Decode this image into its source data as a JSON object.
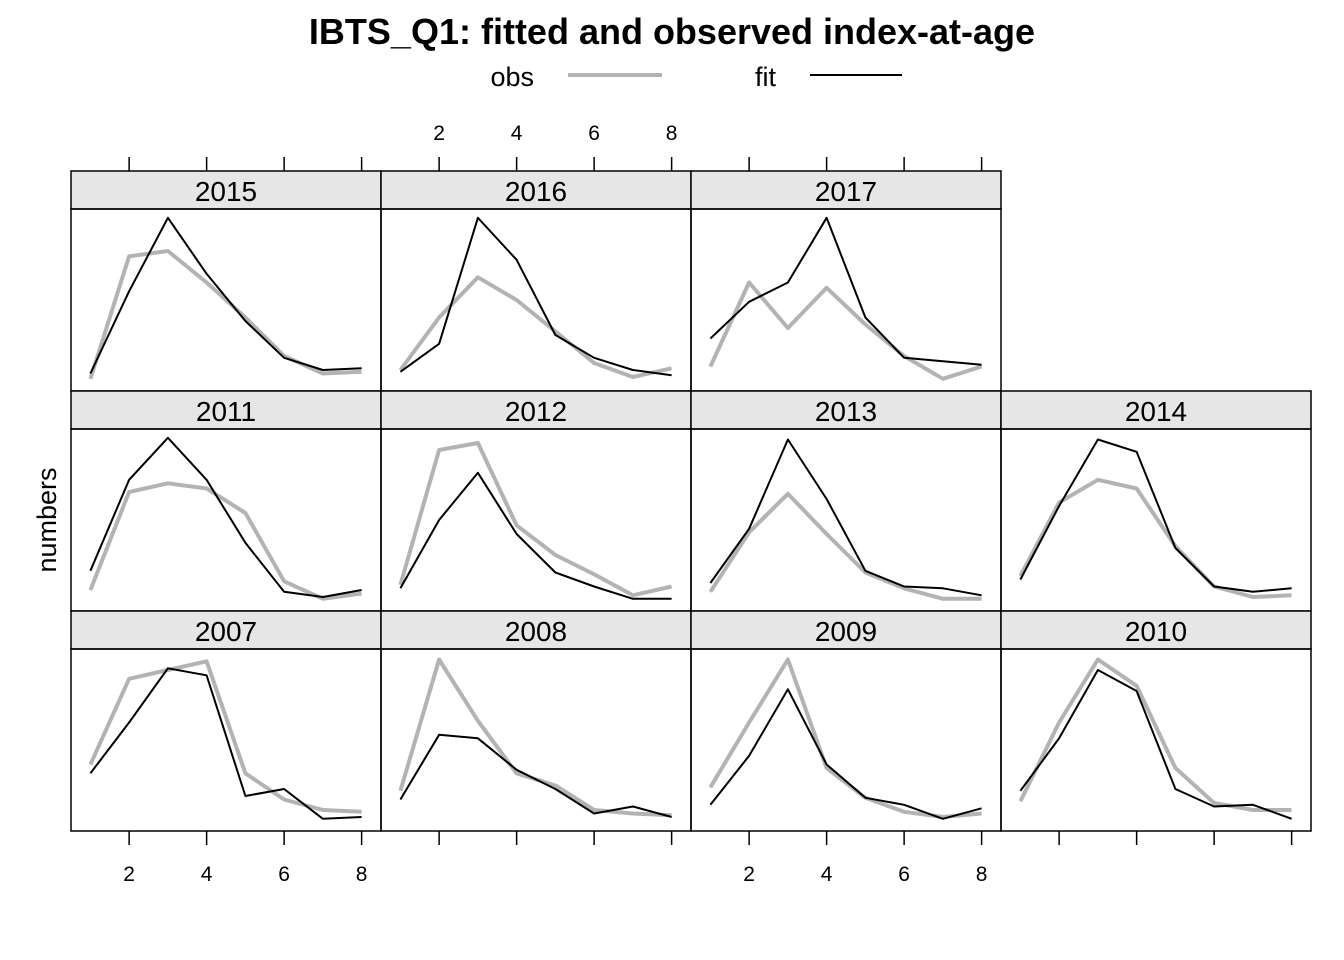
{
  "chart_data": {
    "type": "line",
    "title": "IBTS_Q1: fitted and observed index-at-age",
    "ylabel": "numbers",
    "xlabel": "",
    "xlim": [
      0.5,
      8.5
    ],
    "x_ticks": [
      2,
      4,
      6,
      8
    ],
    "y_scale": "free per panel, no tick labels",
    "legend": {
      "placement": "top",
      "entries": [
        {
          "name": "obs",
          "color": "#b3b3b3"
        },
        {
          "name": "fit",
          "color": "#000000"
        }
      ]
    },
    "ages": [
      1,
      2,
      3,
      4,
      5,
      6,
      7,
      8
    ],
    "panels": [
      {
        "year": "2015",
        "obs": [
          0.05,
          0.75,
          0.78,
          0.6,
          0.4,
          0.18,
          0.08,
          0.09
        ],
        "fit": [
          0.08,
          0.55,
          0.97,
          0.65,
          0.38,
          0.17,
          0.1,
          0.11
        ]
      },
      {
        "year": "2016",
        "obs": [
          0.1,
          0.4,
          0.63,
          0.5,
          0.32,
          0.14,
          0.06,
          0.11
        ],
        "fit": [
          0.09,
          0.25,
          0.97,
          0.73,
          0.3,
          0.17,
          0.1,
          0.07
        ]
      },
      {
        "year": "2017",
        "obs": [
          0.12,
          0.6,
          0.34,
          0.57,
          0.36,
          0.18,
          0.05,
          0.12
        ],
        "fit": [
          0.28,
          0.49,
          0.6,
          0.97,
          0.4,
          0.17,
          0.15,
          0.13
        ]
      },
      {
        "year": "2011",
        "obs": [
          0.1,
          0.66,
          0.71,
          0.68,
          0.54,
          0.15,
          0.05,
          0.08
        ],
        "fit": [
          0.21,
          0.73,
          0.97,
          0.73,
          0.37,
          0.09,
          0.06,
          0.1
        ]
      },
      {
        "year": "2012",
        "obs": [
          0.13,
          0.9,
          0.94,
          0.47,
          0.3,
          0.19,
          0.07,
          0.12
        ],
        "fit": [
          0.11,
          0.5,
          0.77,
          0.42,
          0.2,
          0.12,
          0.05,
          0.05
        ]
      },
      {
        "year": "2013",
        "obs": [
          0.09,
          0.43,
          0.65,
          0.42,
          0.2,
          0.11,
          0.05,
          0.05
        ],
        "fit": [
          0.14,
          0.45,
          0.96,
          0.62,
          0.21,
          0.12,
          0.11,
          0.07
        ]
      },
      {
        "year": "2014",
        "obs": [
          0.18,
          0.6,
          0.73,
          0.68,
          0.35,
          0.12,
          0.06,
          0.07
        ],
        "fit": [
          0.16,
          0.58,
          0.96,
          0.89,
          0.34,
          0.12,
          0.09,
          0.11
        ]
      },
      {
        "year": "2007",
        "obs": [
          0.36,
          0.85,
          0.9,
          0.95,
          0.31,
          0.16,
          0.1,
          0.09
        ],
        "fit": [
          0.31,
          0.6,
          0.91,
          0.87,
          0.18,
          0.22,
          0.05,
          0.06
        ]
      },
      {
        "year": "2008",
        "obs": [
          0.21,
          0.96,
          0.61,
          0.31,
          0.24,
          0.1,
          0.08,
          0.07
        ],
        "fit": [
          0.16,
          0.53,
          0.51,
          0.33,
          0.22,
          0.08,
          0.12,
          0.06
        ]
      },
      {
        "year": "2009",
        "obs": [
          0.23,
          0.6,
          0.96,
          0.34,
          0.17,
          0.09,
          0.06,
          0.08
        ],
        "fit": [
          0.13,
          0.41,
          0.79,
          0.36,
          0.17,
          0.13,
          0.05,
          0.11
        ]
      },
      {
        "year": "2010",
        "obs": [
          0.15,
          0.6,
          0.96,
          0.81,
          0.34,
          0.14,
          0.1,
          0.1
        ],
        "fit": [
          0.21,
          0.51,
          0.9,
          0.78,
          0.22,
          0.12,
          0.13,
          0.05
        ]
      }
    ]
  }
}
